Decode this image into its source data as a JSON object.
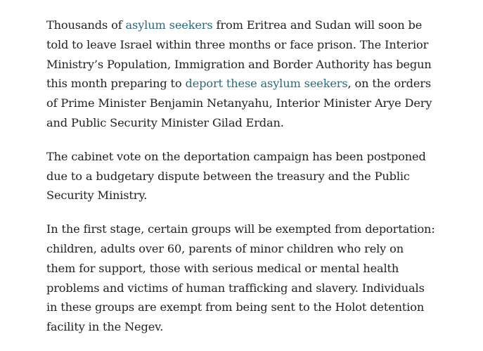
{
  "colors": {
    "text": "#222222",
    "link": "#2b6a7c"
  },
  "paragraphs": [
    {
      "lines": [
        [
          {
            "text": "Thousands of "
          },
          {
            "text": "asylum seekers",
            "link": true
          },
          {
            "text": " from Eritrea and Sudan will soon be"
          }
        ],
        [
          {
            "text": "told to leave Israel within three months or face prison. The Interior"
          }
        ],
        [
          {
            "text": "Ministry’s Population, Immigration and Border Authority has begun"
          }
        ],
        [
          {
            "text": "this month preparing to "
          },
          {
            "text": "deport these asylum seekers",
            "link": true
          },
          {
            "text": ", on the orders"
          }
        ],
        [
          {
            "text": "of Prime Minister Benjamin Netanyahu, Interior Minister Arye Dery"
          }
        ],
        [
          {
            "text": "and Public Security Minister Gilad Erdan."
          }
        ]
      ]
    },
    {
      "lines": [
        [
          {
            "text": "The cabinet vote on the deportation campaign has been postponed"
          }
        ],
        [
          {
            "text": "due to a budgetary dispute between the treasury and the Public"
          }
        ],
        [
          {
            "text": "Security Ministry."
          }
        ]
      ]
    },
    {
      "lines": [
        [
          {
            "text": "In the first stage, certain groups will be exempted from deportation:"
          }
        ],
        [
          {
            "text": "children, adults over 60, parents of minor children who rely on"
          }
        ],
        [
          {
            "text": "them for support, those with serious medical or mental health"
          }
        ],
        [
          {
            "text": "problems and victims of human trafficking and slavery. Individuals"
          }
        ],
        [
          {
            "text": "in these groups are exempt from being sent to the Holot detention"
          }
        ],
        [
          {
            "text": "facility in the Negev."
          }
        ]
      ]
    }
  ]
}
